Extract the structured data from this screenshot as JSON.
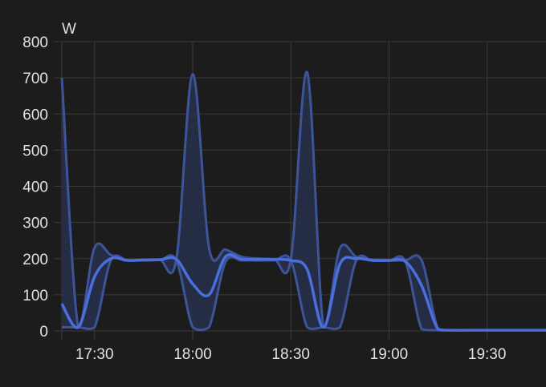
{
  "chart_data": {
    "type": "line",
    "ylabel": "W",
    "ylim": [
      0,
      800
    ],
    "yticks": [
      "0",
      "100",
      "200",
      "300",
      "400",
      "500",
      "600",
      "700",
      "800"
    ],
    "xlim": [
      "17:20",
      "19:48"
    ],
    "xticks": [
      "17:30",
      "18:00",
      "18:30",
      "19:00",
      "19:30"
    ],
    "grid": true,
    "x": [
      "17:20",
      "17:25",
      "17:30",
      "17:35",
      "17:40",
      "17:45",
      "17:50",
      "17:55",
      "18:00",
      "18:05",
      "18:10",
      "18:15",
      "18:20",
      "18:25",
      "18:30",
      "18:35",
      "18:40",
      "18:45",
      "18:50",
      "18:55",
      "19:00",
      "19:05",
      "19:10",
      "19:15",
      "19:20",
      "19:25",
      "19:30",
      "19:35",
      "19:40",
      "19:45",
      "19:48"
    ],
    "series": [
      {
        "role": "mean",
        "values": [
          75,
          10,
          150,
          200,
          195,
          196,
          197,
          198,
          130,
          100,
          205,
          198,
          198,
          198,
          195,
          170,
          10,
          185,
          200,
          195,
          195,
          192,
          125,
          5,
          2,
          2,
          2,
          2,
          2,
          2,
          2
        ]
      },
      {
        "role": "max",
        "values": [
          700,
          10,
          230,
          210,
          195,
          196,
          197,
          198,
          710,
          230,
          225,
          205,
          200,
          198,
          198,
          715,
          10,
          228,
          205,
          197,
          195,
          195,
          195,
          5,
          2,
          2,
          2,
          2,
          2,
          2,
          2
        ]
      },
      {
        "role": "min",
        "values": [
          10,
          10,
          10,
          195,
          195,
          195,
          196,
          195,
          10,
          10,
          190,
          195,
          195,
          195,
          195,
          10,
          10,
          10,
          195,
          194,
          194,
          192,
          5,
          2,
          2,
          2,
          2,
          2,
          2,
          2,
          2
        ]
      }
    ],
    "colors": {
      "mean": "#4a6fdc",
      "band_line": "#3d5499",
      "band_fill": "#26304a",
      "grid": "#3a3a3a",
      "background": "#1c1c1c",
      "text": "#e1e1e1"
    }
  }
}
